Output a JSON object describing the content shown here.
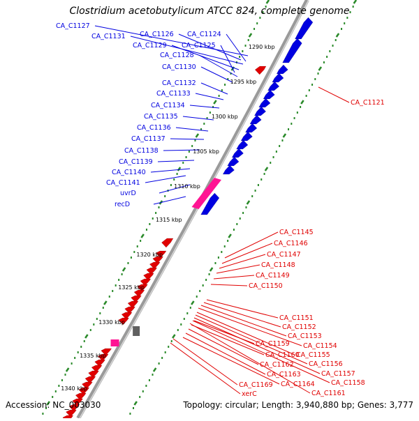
{
  "title": "Clostridium acetobutylicum ATCC 824, complete genome",
  "footer": {
    "accession_text": "Accession: NC_003030",
    "summary_text": "Topology: circular; Length: 3,940,880 bp; Genes: 3,777"
  },
  "colors": {
    "forward_gene": "#0000e0",
    "reverse_gene": "#e00000",
    "highlight_gene": "#ff1493",
    "other_feature": "#606060",
    "backbone": "#9a9a9a",
    "ticks": "#2a8a2a"
  },
  "kbp_ticks": [
    "1290 kbp",
    "1295 kbp",
    "1300 kbp",
    "1305 kbp",
    "1310 kbp",
    "1315 kbp",
    "1320 kbp",
    "1325 kbp",
    "1330 kbp",
    "1335 kbp",
    "1340 kbp"
  ],
  "forward_labels": [
    "CA_C1127",
    "CA_C1131",
    "CA_C1126",
    "CA_C1124",
    "CA_C1129",
    "CA_C1125",
    "CA_C1128",
    "CA_C1130",
    "CA_C1132",
    "CA_C1133",
    "CA_C1134",
    "CA_C1135",
    "CA_C1136",
    "CA_C1137",
    "CA_C1138",
    "CA_C1139",
    "CA_C1140",
    "CA_C1141",
    "uvrD",
    "recD"
  ],
  "reverse_labels": [
    "CA_C1121",
    "CA_C1145",
    "CA_C1146",
    "CA_C1147",
    "CA_C1148",
    "CA_C1149",
    "CA_C1150",
    "CA_C1151",
    "CA_C1152",
    "CA_C1153",
    "CA_C1154",
    "CA_C1159",
    "CA_C1155",
    "CA_C1160",
    "CA_C1156",
    "CA_C1162",
    "CA_C1157",
    "CA_C1163",
    "CA_C1158",
    "CA_C1164",
    "CA_C1169",
    "CA_C1161",
    "xerC"
  ]
}
